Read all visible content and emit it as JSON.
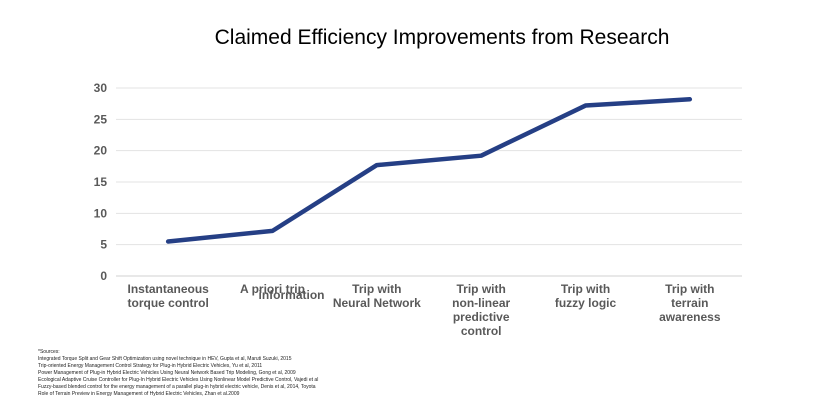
{
  "chart_data": {
    "type": "line",
    "title": "Claimed Efficiency Improvements from Research",
    "categories": [
      [
        "Instantaneous",
        "torque control"
      ],
      [
        "A priori trip",
        "information"
      ],
      [
        "Trip with",
        "Neural Network"
      ],
      [
        "Trip with",
        "non-linear",
        "predictive",
        "control"
      ],
      [
        "Trip with",
        "fuzzy logic"
      ],
      [
        "Trip with",
        "terrain",
        "awareness"
      ]
    ],
    "series": [
      {
        "values": [
          5.5,
          7.2,
          17.7,
          19.2,
          27.2,
          28.2
        ],
        "color": "#253f85"
      }
    ],
    "ylim": [
      0,
      30
    ],
    "yticks": [
      0,
      5,
      10,
      15,
      20,
      25,
      30
    ],
    "grid": true
  },
  "sources": {
    "heading": "*Sources:",
    "lines": [
      "Integrated Torque Split and Gear Shift Optimization using novel technique in HEV, Gupta et al, Maruti Suzuki, 2015",
      "Trip-oriented Energy Management Control Strategy for Plug-in Hybrid Electric Vehicles, Yu et al, 2011",
      "Power Management of Plug-in Hybrid Electric Vehicles Using Neural Network Based Trip Modeling, Gong et al, 2009",
      "Ecological Adaptive Cruise Controller for Plug-In Hybrid Electric Vehicles Using Nonlinear Model Predictive Control, Vajedi et al",
      "Fuzzy-based blended control for the energy management of a parallel plug-in hybrid electric vehicle, Denis et al, 2014, Toyota",
      "Role of Terrain Preview in Energy Management of Hybrid Electric Vehicles, Zhan et al.2009"
    ]
  }
}
